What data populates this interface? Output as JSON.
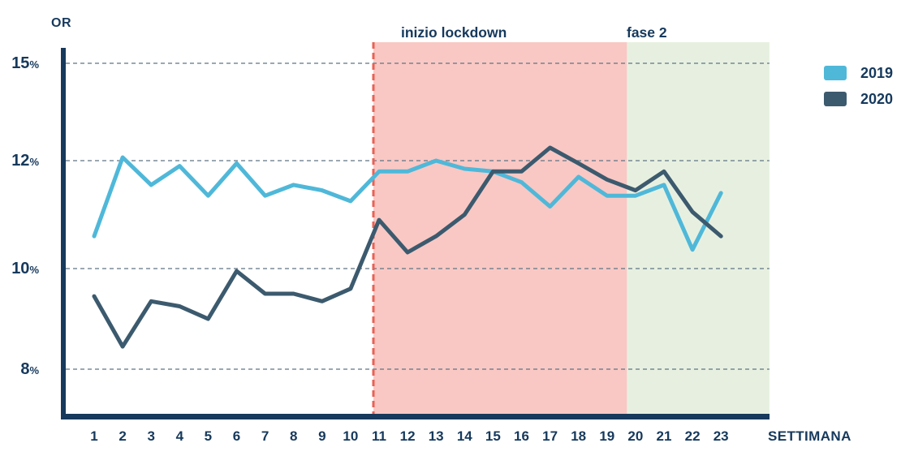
{
  "page": {
    "background": "#ffffff"
  },
  "axis": {
    "y_title": "OR",
    "x_title": "SETTIMANA",
    "y_ticks": [
      {
        "label": "15",
        "suffix": "%"
      },
      {
        "label": "12",
        "suffix": "%"
      },
      {
        "label": "10",
        "suffix": "%"
      },
      {
        "label": "8",
        "suffix": "%"
      }
    ]
  },
  "colors": {
    "text_navy": "#16395c",
    "axis_navy": "#16395c",
    "gridline": "#5f7585"
  },
  "chart_data": {
    "type": "line",
    "title": "",
    "xlabel": "SETTIMANA",
    "ylabel": "OR",
    "y_unit": "%",
    "categories": [
      1,
      2,
      3,
      4,
      5,
      6,
      7,
      8,
      9,
      10,
      11,
      12,
      13,
      14,
      15,
      16,
      17,
      18,
      19,
      20,
      21,
      22,
      23
    ],
    "y_tick_values": [
      15,
      12,
      10,
      8
    ],
    "ylim": [
      7.1,
      15.6
    ],
    "xlim": [
      0,
      24.7
    ],
    "grid": "horizontal-dashed",
    "legend_position": "top-right",
    "series": [
      {
        "name": "2019",
        "color": "#4fb8d9",
        "values": [
          10.6,
          12.1,
          11.55,
          11.9,
          11.35,
          11.95,
          11.35,
          11.55,
          11.45,
          11.25,
          11.8,
          11.8,
          12.0,
          11.85,
          11.8,
          11.6,
          11.15,
          11.7,
          11.35,
          11.35,
          11.55,
          10.35,
          11.4
        ]
      },
      {
        "name": "2020",
        "color": "#3c5a6e",
        "values": [
          9.45,
          8.45,
          9.35,
          9.25,
          9.0,
          9.95,
          9.5,
          9.5,
          9.35,
          9.6,
          10.9,
          10.3,
          10.6,
          11.0,
          11.8,
          11.8,
          12.4,
          11.95,
          11.65,
          11.45,
          11.8,
          11.05,
          10.6
        ]
      }
    ],
    "annotations": [
      {
        "type": "vline",
        "at_week": 10.8,
        "style": "dashed",
        "color": "#ea6154"
      },
      {
        "type": "region",
        "label": "inizio lockdown",
        "from_week": 10.8,
        "to_week": 19.7,
        "color": "#f9c8c4"
      },
      {
        "type": "region",
        "label": "fase 2",
        "from_week": 19.7,
        "to_week": 24.7,
        "color": "#e7f0e0"
      }
    ]
  }
}
